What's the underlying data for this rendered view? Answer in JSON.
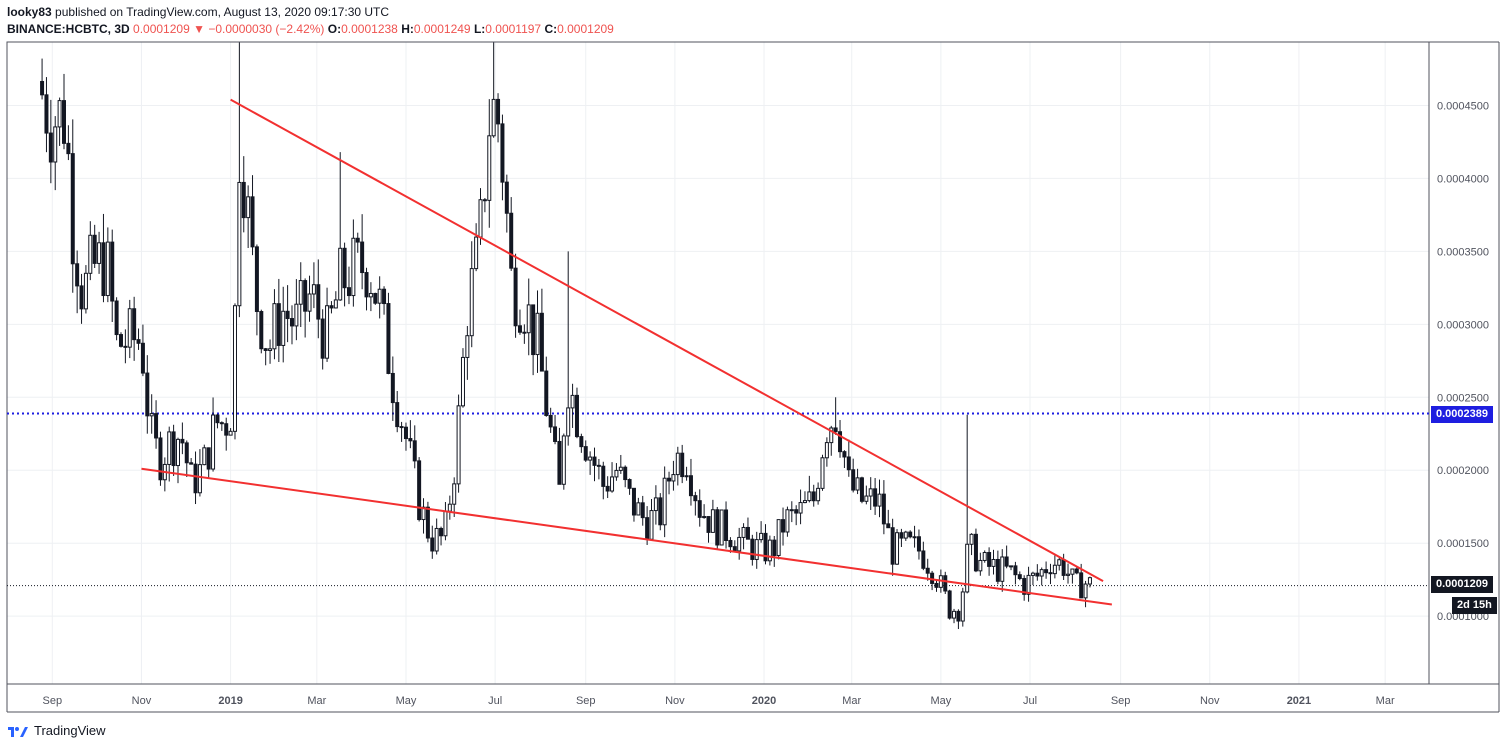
{
  "header": {
    "publisher": "looky83",
    "published_text": "published on TradingView.com, August 13, 2020 09:17:30 UTC",
    "symbol": "BINANCE:HCBTC, 3D",
    "price": "0.0001209",
    "change_arrow": "▼",
    "change": "−0.0000030 (−2.42%)",
    "o_label": "O:",
    "o_value": "0.0001238",
    "h_label": "H:",
    "h_value": "0.0001249",
    "l_label": "L:",
    "l_value": "0.0001197",
    "c_label": "C:",
    "c_value": "0.0001209"
  },
  "tags": {
    "hline": "0.0002389",
    "last": "0.0001209",
    "countdown": "2d 15h"
  },
  "footer": {
    "brand": "TradingView"
  },
  "colors": {
    "candle": "#131722",
    "trendline": "#f23030",
    "hline": "#1e1ee0",
    "grid": "#eef0f3",
    "axis": "#50535e"
  },
  "chart_data": {
    "type": "candlestick",
    "title": "BINANCE:HCBTC, 3D",
    "y_ticks": [
      "0.0001000",
      "0.0001500",
      "0.0002000",
      "0.0002500",
      "0.0003000",
      "0.0003500",
      "0.0004000",
      "0.0004500"
    ],
    "y_tick_values": [
      0.0001,
      0.00015,
      0.0002,
      0.00025,
      0.0003,
      0.00035,
      0.0004,
      0.00045
    ],
    "ylim": [
      5.35e-05,
      0.0004935
    ],
    "x_ticks": [
      "Sep",
      "Nov",
      "2019",
      "Mar",
      "May",
      "Jul",
      "Sep",
      "Nov",
      "2020",
      "Mar",
      "May",
      "Jul",
      "Sep",
      "Nov",
      "2021",
      "Mar"
    ],
    "x_tick_bold": [
      "2019",
      "2020",
      "2021"
    ],
    "x_tick_dates": [
      "2018-09-01",
      "2018-11-01",
      "2019-01-01",
      "2019-03-01",
      "2019-05-01",
      "2019-07-01",
      "2019-09-01",
      "2019-11-01",
      "2020-01-01",
      "2020-03-01",
      "2020-05-01",
      "2020-07-01",
      "2020-09-01",
      "2020-11-01",
      "2021-01-01",
      "2021-03-01"
    ],
    "xlim": [
      "2018-08-01",
      "2021-03-31"
    ],
    "horizontal_line": 0.0002389,
    "last_price": 0.0001209,
    "trendlines": [
      {
        "name": "upper",
        "from": [
          "2019-01-01",
          0.000454
        ],
        "to": [
          "2020-08-20",
          0.000124
        ]
      },
      {
        "name": "lower",
        "from": [
          "2018-11-01",
          0.000201
        ],
        "to": [
          "2020-08-26",
          0.000108
        ]
      }
    ],
    "anchors": [
      [
        "2018-08-25",
        0.000458
      ],
      [
        "2018-08-31",
        0.000441
      ],
      [
        "2018-09-10",
        0.000443
      ],
      [
        "2018-09-15",
        0.000368
      ],
      [
        "2018-09-22",
        0.00032
      ],
      [
        "2018-09-28",
        0.000338
      ],
      [
        "2018-10-08",
        0.000344
      ],
      [
        "2018-10-15",
        0.000286
      ],
      [
        "2018-10-25",
        0.00029
      ],
      [
        "2018-11-01",
        0.000289
      ],
      [
        "2018-11-07",
        0.000225
      ],
      [
        "2018-11-13",
        0.000208
      ],
      [
        "2018-11-20",
        0.000218
      ],
      [
        "2018-11-28",
        0.000225
      ],
      [
        "2018-12-05",
        0.000192
      ],
      [
        "2018-12-13",
        0.000201
      ],
      [
        "2018-12-22",
        0.000233
      ],
      [
        "2018-12-28",
        0.000232
      ],
      [
        "2019-01-03",
        0.000245
      ],
      [
        "2019-01-06",
        0.00043
      ],
      [
        "2019-01-10",
        0.000405
      ],
      [
        "2019-01-18",
        0.00032
      ],
      [
        "2019-01-27",
        0.000283
      ],
      [
        "2019-02-05",
        0.00031
      ],
      [
        "2019-02-15",
        0.0003
      ],
      [
        "2019-02-25",
        0.00032
      ],
      [
        "2019-03-08",
        0.00029
      ],
      [
        "2019-03-17",
        0.000328
      ],
      [
        "2019-03-26",
        0.000337
      ],
      [
        "2019-04-05",
        0.000342
      ],
      [
        "2019-04-13",
        0.000312
      ],
      [
        "2019-04-22",
        0.000262
      ],
      [
        "2019-05-01",
        0.000222
      ],
      [
        "2019-05-10",
        0.000178
      ],
      [
        "2019-05-18",
        0.000153
      ],
      [
        "2019-05-27",
        0.000153
      ],
      [
        "2019-06-04",
        0.00021
      ],
      [
        "2019-06-12",
        0.00031
      ],
      [
        "2019-06-20",
        0.00035
      ],
      [
        "2019-06-27",
        0.00044
      ],
      [
        "2019-07-02",
        0.00045
      ],
      [
        "2019-07-07",
        0.0004
      ],
      [
        "2019-07-12",
        0.00033
      ],
      [
        "2019-07-21",
        0.000315
      ],
      [
        "2019-07-30",
        0.000285
      ],
      [
        "2019-08-08",
        0.000225
      ],
      [
        "2019-08-14",
        0.000185
      ],
      [
        "2019-08-19",
        0.000265
      ],
      [
        "2019-08-27",
        0.000235
      ],
      [
        "2019-09-04",
        0.000212
      ],
      [
        "2019-09-13",
        0.00019
      ],
      [
        "2019-09-22",
        0.0002
      ],
      [
        "2019-10-02",
        0.000178
      ],
      [
        "2019-10-12",
        0.000165
      ],
      [
        "2019-10-22",
        0.00017
      ],
      [
        "2019-10-31",
        0.000208
      ],
      [
        "2019-11-09",
        0.00021
      ],
      [
        "2019-11-18",
        0.000175
      ],
      [
        "2019-11-28",
        0.000162
      ],
      [
        "2019-12-08",
        0.000158
      ],
      [
        "2019-12-18",
        0.00015
      ],
      [
        "2019-12-28",
        0.000146
      ],
      [
        "2020-01-07",
        0.000145
      ],
      [
        "2020-01-15",
        0.000165
      ],
      [
        "2020-01-25",
        0.00017
      ],
      [
        "2020-02-04",
        0.00018
      ],
      [
        "2020-02-12",
        0.00023
      ],
      [
        "2020-02-20",
        0.00024
      ],
      [
        "2020-02-28",
        0.00019
      ],
      [
        "2020-03-09",
        0.000178
      ],
      [
        "2020-03-19",
        0.00018
      ],
      [
        "2020-03-29",
        0.000145
      ],
      [
        "2020-04-08",
        0.000148
      ],
      [
        "2020-04-17",
        0.000145
      ],
      [
        "2020-04-27",
        0.00013
      ],
      [
        "2020-05-07",
        0.000105
      ],
      [
        "2020-05-14",
        0.000105
      ],
      [
        "2020-05-20",
        0.000148
      ],
      [
        "2020-05-29",
        0.000135
      ],
      [
        "2020-06-07",
        0.000133
      ],
      [
        "2020-06-17",
        0.00013
      ],
      [
        "2020-06-27",
        0.000122
      ],
      [
        "2020-07-07",
        0.000128
      ],
      [
        "2020-07-15",
        0.000138
      ],
      [
        "2020-07-24",
        0.000135
      ],
      [
        "2020-08-01",
        0.00012
      ],
      [
        "2020-08-07",
        0.000123
      ],
      [
        "2020-08-12",
        0.000121
      ]
    ],
    "series_note": "3-day candles (open/high/low/close) for HCBTC, generated from the anchor closes listed above"
  }
}
